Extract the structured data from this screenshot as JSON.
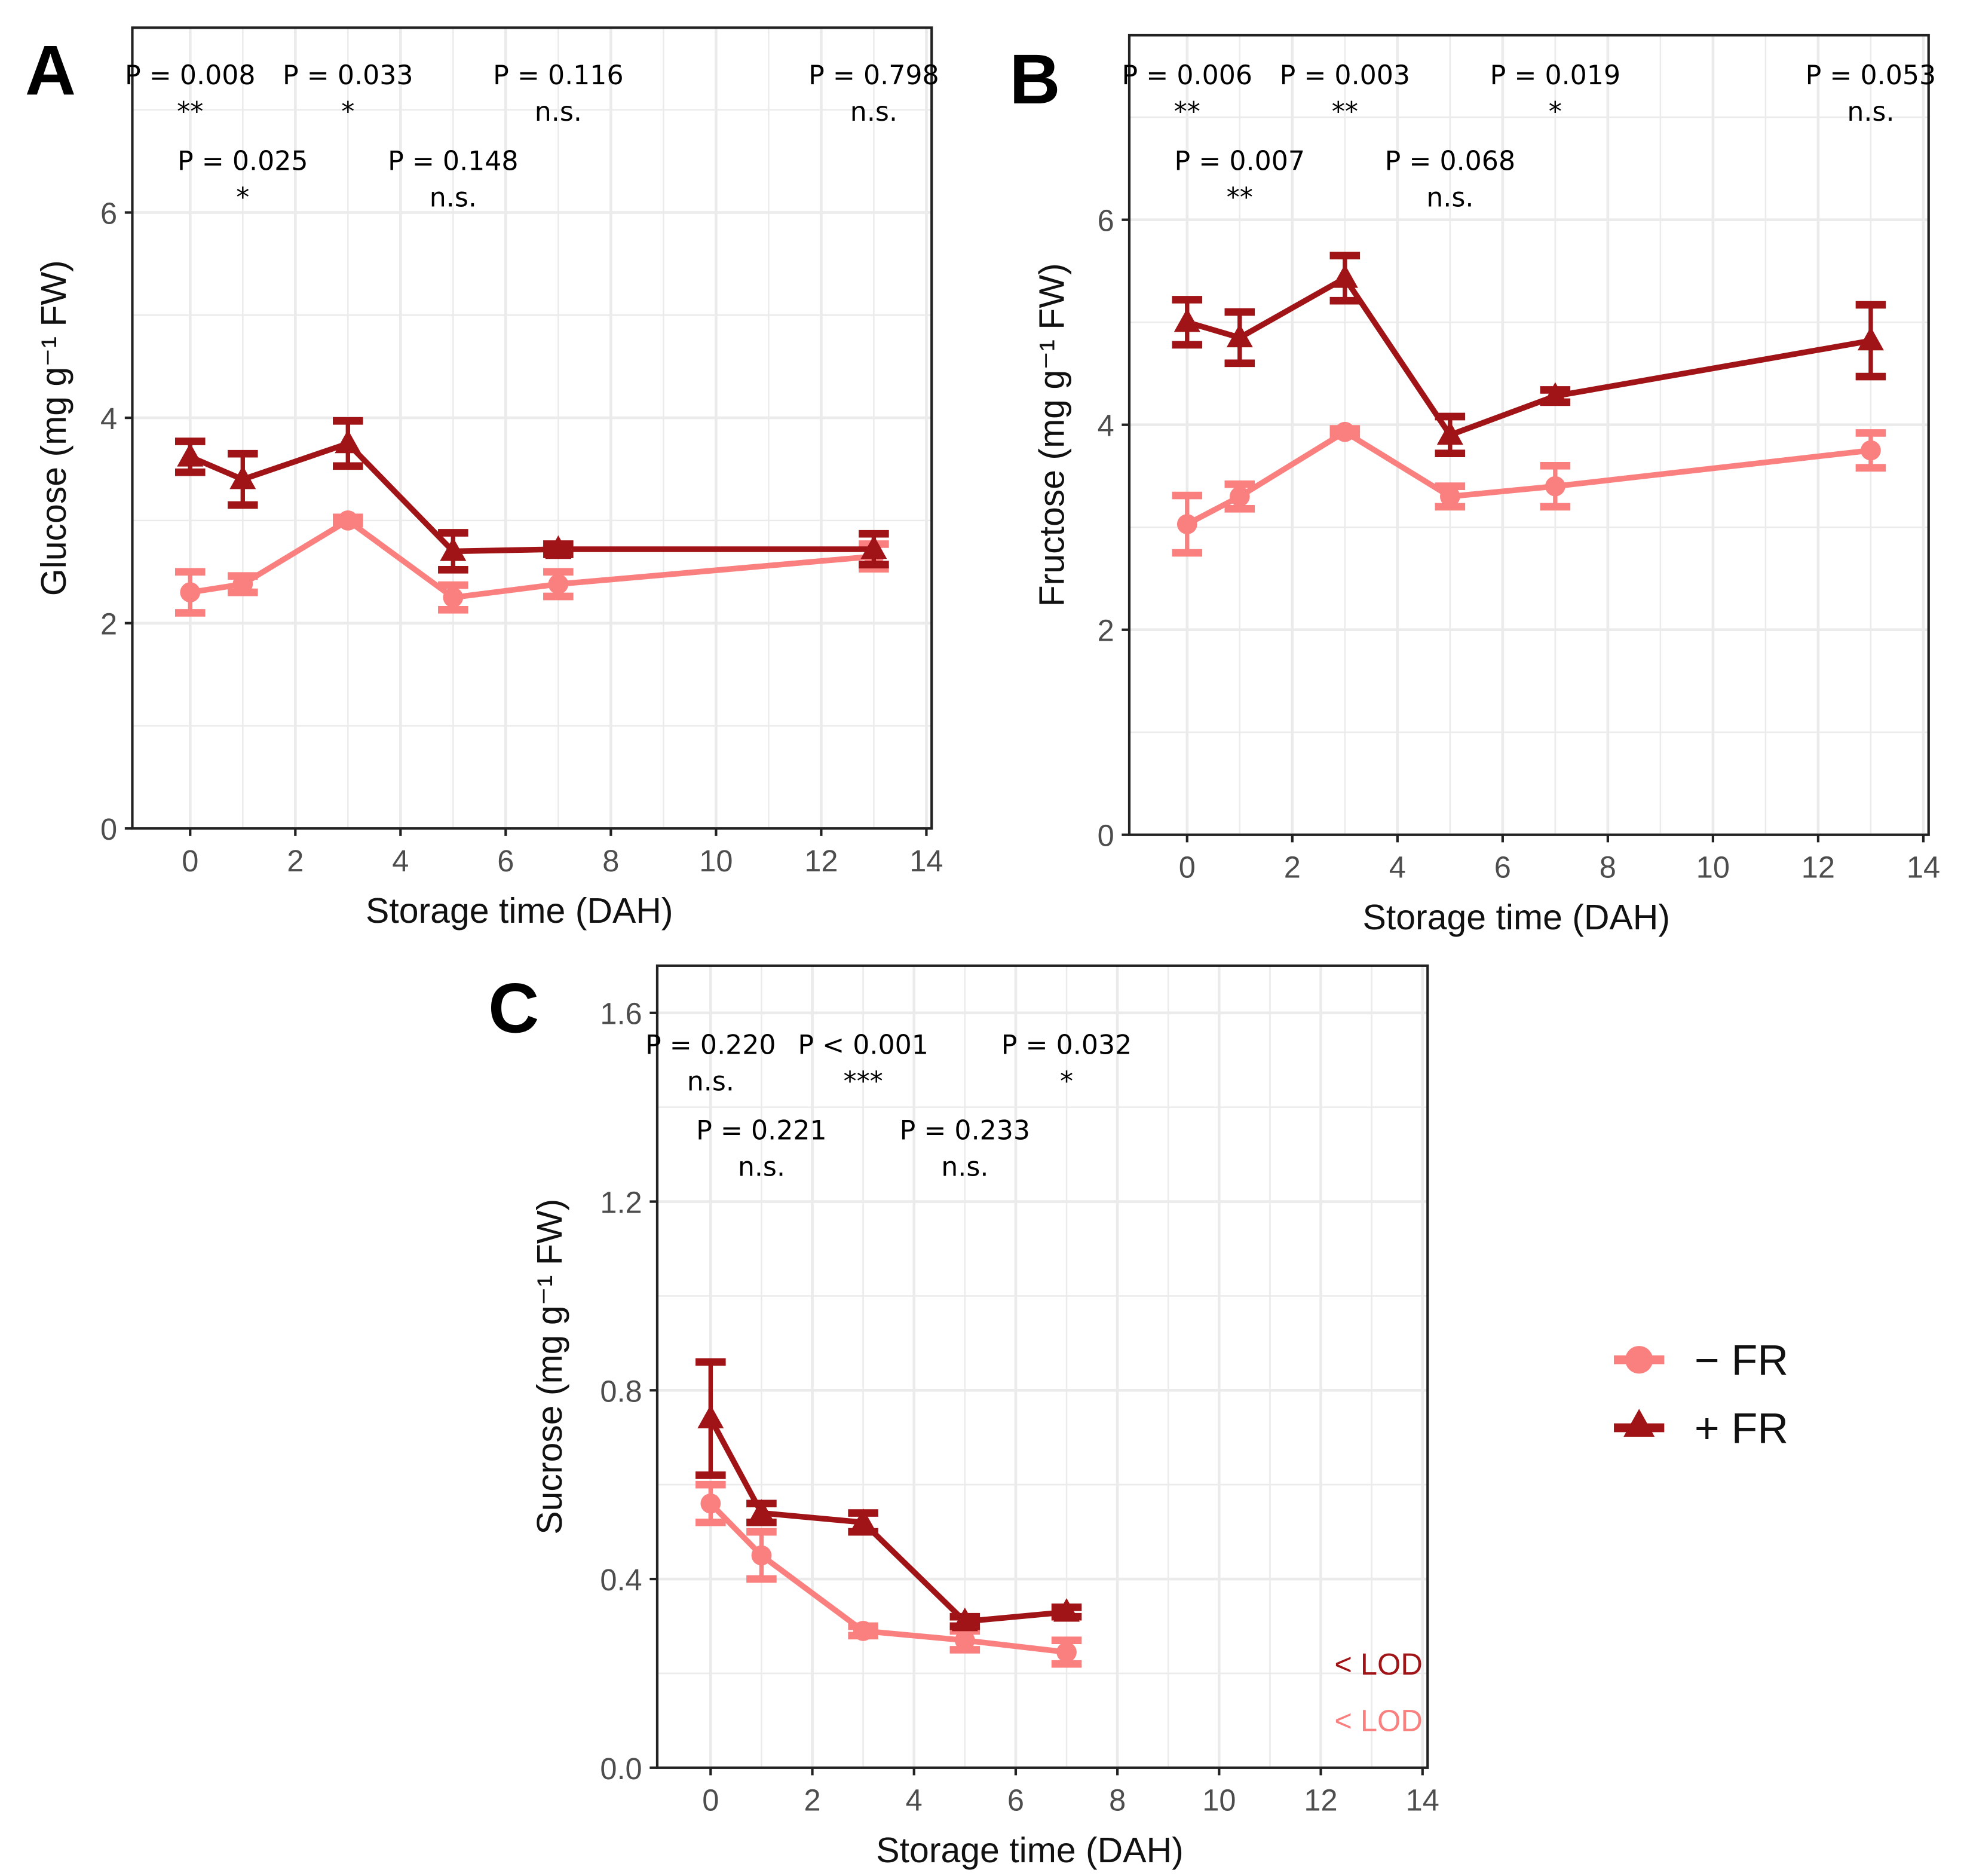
{
  "colors": {
    "minus_fr": "#fa8080",
    "plus_fr": "#a01316",
    "grid": "#ebebeb",
    "axis": "#222222"
  },
  "legend": {
    "items": [
      {
        "label": "− FR",
        "series": "minus_fr",
        "marker": "circle"
      },
      {
        "label": "+ FR",
        "series": "plus_fr",
        "marker": "triangle"
      }
    ],
    "placement": "right of panel C"
  },
  "chart_data": [
    {
      "panel": "A",
      "type": "line",
      "xlabel": "Storage time (DAH)",
      "ylabel": "Glucose (mg g⁻¹ FW)",
      "xlim": [
        -1.1,
        14.1
      ],
      "ylim": [
        0,
        7.8
      ],
      "xticks": [
        0,
        2,
        4,
        6,
        8,
        10,
        12,
        14
      ],
      "yticks": [
        0,
        2,
        4,
        6
      ],
      "ytick_labels": [
        "0",
        "2",
        "4",
        "6"
      ],
      "grid": true,
      "x": [
        0,
        1,
        3,
        5,
        7,
        13
      ],
      "series": [
        {
          "name": "− FR",
          "key": "minus_fr",
          "values": [
            2.3,
            2.38,
            3.0,
            2.25,
            2.38,
            2.65
          ],
          "err": [
            0.2,
            0.08,
            0.03,
            0.12,
            0.12,
            0.12
          ]
        },
        {
          "name": "+ FR",
          "key": "plus_fr",
          "values": [
            3.62,
            3.4,
            3.75,
            2.7,
            2.72,
            2.72
          ],
          "err": [
            0.15,
            0.25,
            0.22,
            0.18,
            0.05,
            0.15
          ]
        }
      ],
      "annotations": [
        {
          "x": 0,
          "row": 0,
          "p": "P = 0.008",
          "sig": "**"
        },
        {
          "x": 1,
          "row": 1,
          "p": "P = 0.025",
          "sig": "*"
        },
        {
          "x": 3,
          "row": 0,
          "p": "P = 0.033",
          "sig": "*"
        },
        {
          "x": 5,
          "row": 1,
          "p": "P = 0.148",
          "sig": "n.s."
        },
        {
          "x": 7,
          "row": 0,
          "p": "P = 0.116",
          "sig": "n.s."
        },
        {
          "x": 13,
          "row": 0,
          "p": "P = 0.798",
          "sig": "n.s."
        }
      ],
      "notes": []
    },
    {
      "panel": "B",
      "type": "line",
      "xlabel": "Storage time (DAH)",
      "ylabel": "Fructose (mg g⁻¹ FW)",
      "xlim": [
        -1.1,
        14.1
      ],
      "ylim": [
        0,
        7.8
      ],
      "xticks": [
        0,
        2,
        4,
        6,
        8,
        10,
        12,
        14
      ],
      "yticks": [
        0,
        2,
        4,
        6
      ],
      "ytick_labels": [
        "0",
        "2",
        "4",
        "6"
      ],
      "grid": true,
      "x": [
        0,
        1,
        3,
        5,
        7,
        13
      ],
      "series": [
        {
          "name": "− FR",
          "key": "minus_fr",
          "values": [
            3.03,
            3.3,
            3.93,
            3.3,
            3.4,
            3.75
          ],
          "err": [
            0.28,
            0.12,
            0.03,
            0.1,
            0.2,
            0.17
          ]
        },
        {
          "name": "+ FR",
          "key": "plus_fr",
          "values": [
            5.0,
            4.85,
            5.43,
            3.9,
            4.28,
            4.82
          ],
          "err": [
            0.22,
            0.25,
            0.22,
            0.18,
            0.06,
            0.35
          ]
        }
      ],
      "annotations": [
        {
          "x": 0,
          "row": 0,
          "p": "P = 0.006",
          "sig": "**"
        },
        {
          "x": 1,
          "row": 1,
          "p": "P = 0.007",
          "sig": "**"
        },
        {
          "x": 3,
          "row": 0,
          "p": "P = 0.003",
          "sig": "**"
        },
        {
          "x": 5,
          "row": 1,
          "p": "P = 0.068",
          "sig": "n.s."
        },
        {
          "x": 7,
          "row": 0,
          "p": "P = 0.019",
          "sig": "*"
        },
        {
          "x": 13,
          "row": 0,
          "p": "P = 0.053",
          "sig": "n.s."
        }
      ],
      "notes": []
    },
    {
      "panel": "C",
      "type": "line",
      "xlabel": "Storage time (DAH)",
      "ylabel": "Sucrose (mg g⁻¹ FW)",
      "xlim": [
        -1.05,
        14.1
      ],
      "ylim": [
        0,
        1.7
      ],
      "xticks": [
        0,
        2,
        4,
        6,
        8,
        10,
        12,
        14
      ],
      "yticks": [
        0,
        0.4,
        0.8,
        1.2,
        1.6
      ],
      "ytick_labels": [
        "0.0",
        "0.4",
        "0.8",
        "1.2",
        "1.6"
      ],
      "grid": true,
      "x": [
        0,
        1,
        3,
        5,
        7
      ],
      "series": [
        {
          "name": "− FR",
          "key": "minus_fr",
          "values": [
            0.56,
            0.45,
            0.29,
            0.27,
            0.245
          ],
          "err": [
            0.04,
            0.05,
            0.01,
            0.02,
            0.025
          ]
        },
        {
          "name": "+ FR",
          "key": "plus_fr",
          "values": [
            0.74,
            0.54,
            0.52,
            0.31,
            0.33
          ],
          "err": [
            0.12,
            0.02,
            0.02,
            0.01,
            0.01
          ]
        }
      ],
      "annotations": [
        {
          "x": 0,
          "row": 0,
          "p": "P = 0.220",
          "sig": "n.s."
        },
        {
          "x": 1,
          "row": 1,
          "p": "P = 0.221",
          "sig": "n.s."
        },
        {
          "x": 3,
          "row": 0,
          "p": "P < 0.001",
          "sig": "***"
        },
        {
          "x": 5,
          "row": 1,
          "p": "P = 0.233",
          "sig": "n.s."
        },
        {
          "x": 7,
          "row": 0,
          "p": "P = 0.032",
          "sig": "*"
        }
      ],
      "notes": [
        {
          "text": "< LOD",
          "series": "plus_fr"
        },
        {
          "text": "< LOD",
          "series": "minus_fr"
        }
      ]
    }
  ]
}
